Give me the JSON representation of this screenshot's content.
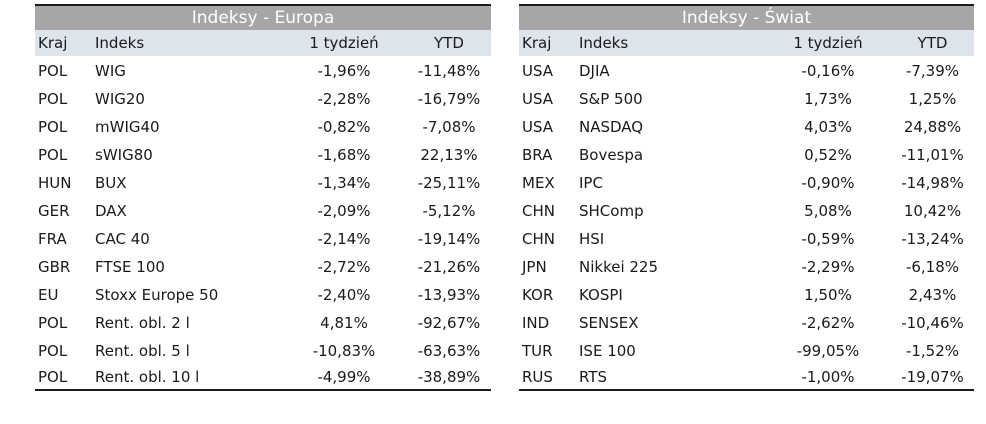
{
  "europe": {
    "title": "Indeksy - Europa",
    "headers": {
      "kraj": "Kraj",
      "indeks": "Indeks",
      "w1": "1 tydzień",
      "ytd": "YTD"
    },
    "rows": [
      {
        "kraj": "POL",
        "indeks": "WIG",
        "w1": "-1,96%",
        "ytd": "-11,48%"
      },
      {
        "kraj": "POL",
        "indeks": "WIG20",
        "w1": "-2,28%",
        "ytd": "-16,79%"
      },
      {
        "kraj": "POL",
        "indeks": "mWIG40",
        "w1": "-0,82%",
        "ytd": "-7,08%"
      },
      {
        "kraj": "POL",
        "indeks": "sWIG80",
        "w1": "-1,68%",
        "ytd": "22,13%"
      },
      {
        "kraj": "HUN",
        "indeks": "BUX",
        "w1": "-1,34%",
        "ytd": "-25,11%"
      },
      {
        "kraj": "GER",
        "indeks": "DAX",
        "w1": "-2,09%",
        "ytd": "-5,12%"
      },
      {
        "kraj": "FRA",
        "indeks": "CAC 40",
        "w1": "-2,14%",
        "ytd": "-19,14%"
      },
      {
        "kraj": "GBR",
        "indeks": "FTSE 100",
        "w1": "-2,72%",
        "ytd": "-21,26%"
      },
      {
        "kraj": "EU",
        "indeks": "Stoxx Europe 50",
        "w1": "-2,40%",
        "ytd": "-13,93%"
      },
      {
        "kraj": "POL",
        "indeks": "Rent. obl. 2 l",
        "w1": "4,81%",
        "ytd": "-92,67%"
      },
      {
        "kraj": "POL",
        "indeks": "Rent. obl. 5 l",
        "w1": "-10,83%",
        "ytd": "-63,63%"
      },
      {
        "kraj": "POL",
        "indeks": "Rent. obl. 10 l",
        "w1": "-4,99%",
        "ytd": "-38,89%"
      }
    ]
  },
  "world": {
    "title": "Indeksy - Świat",
    "headers": {
      "kraj": "Kraj",
      "indeks": "Indeks",
      "w1": "1 tydzień",
      "ytd": "YTD"
    },
    "rows": [
      {
        "kraj": "USA",
        "indeks": "DJIA",
        "w1": "-0,16%",
        "ytd": "-7,39%"
      },
      {
        "kraj": "USA",
        "indeks": "S&P 500",
        "w1": "1,73%",
        "ytd": "1,25%"
      },
      {
        "kraj": "USA",
        "indeks": "NASDAQ",
        "w1": "4,03%",
        "ytd": "24,88%"
      },
      {
        "kraj": "BRA",
        "indeks": "Bovespa",
        "w1": "0,52%",
        "ytd": "-11,01%"
      },
      {
        "kraj": "MEX",
        "indeks": "IPC",
        "w1": "-0,90%",
        "ytd": "-14,98%"
      },
      {
        "kraj": "CHN",
        "indeks": "SHComp",
        "w1": "5,08%",
        "ytd": "10,42%"
      },
      {
        "kraj": "CHN",
        "indeks": "HSI",
        "w1": "-0,59%",
        "ytd": "-13,24%"
      },
      {
        "kraj": "JPN",
        "indeks": "Nikkei 225",
        "w1": "-2,29%",
        "ytd": "-6,18%"
      },
      {
        "kraj": "KOR",
        "indeks": "KOSPI",
        "w1": "1,50%",
        "ytd": "2,43%"
      },
      {
        "kraj": "IND",
        "indeks": "SENSEX",
        "w1": "-2,62%",
        "ytd": "-10,46%"
      },
      {
        "kraj": "TUR",
        "indeks": "ISE 100",
        "w1": "-99,05%",
        "ytd": "-1,52%"
      },
      {
        "kraj": "RUS",
        "indeks": "RTS",
        "w1": "-1,00%",
        "ytd": "-19,07%"
      }
    ]
  },
  "colors": {
    "title_bar": "#a6a6a6",
    "header_bar": "#dde4ec",
    "rule": "#1a1a1a"
  }
}
